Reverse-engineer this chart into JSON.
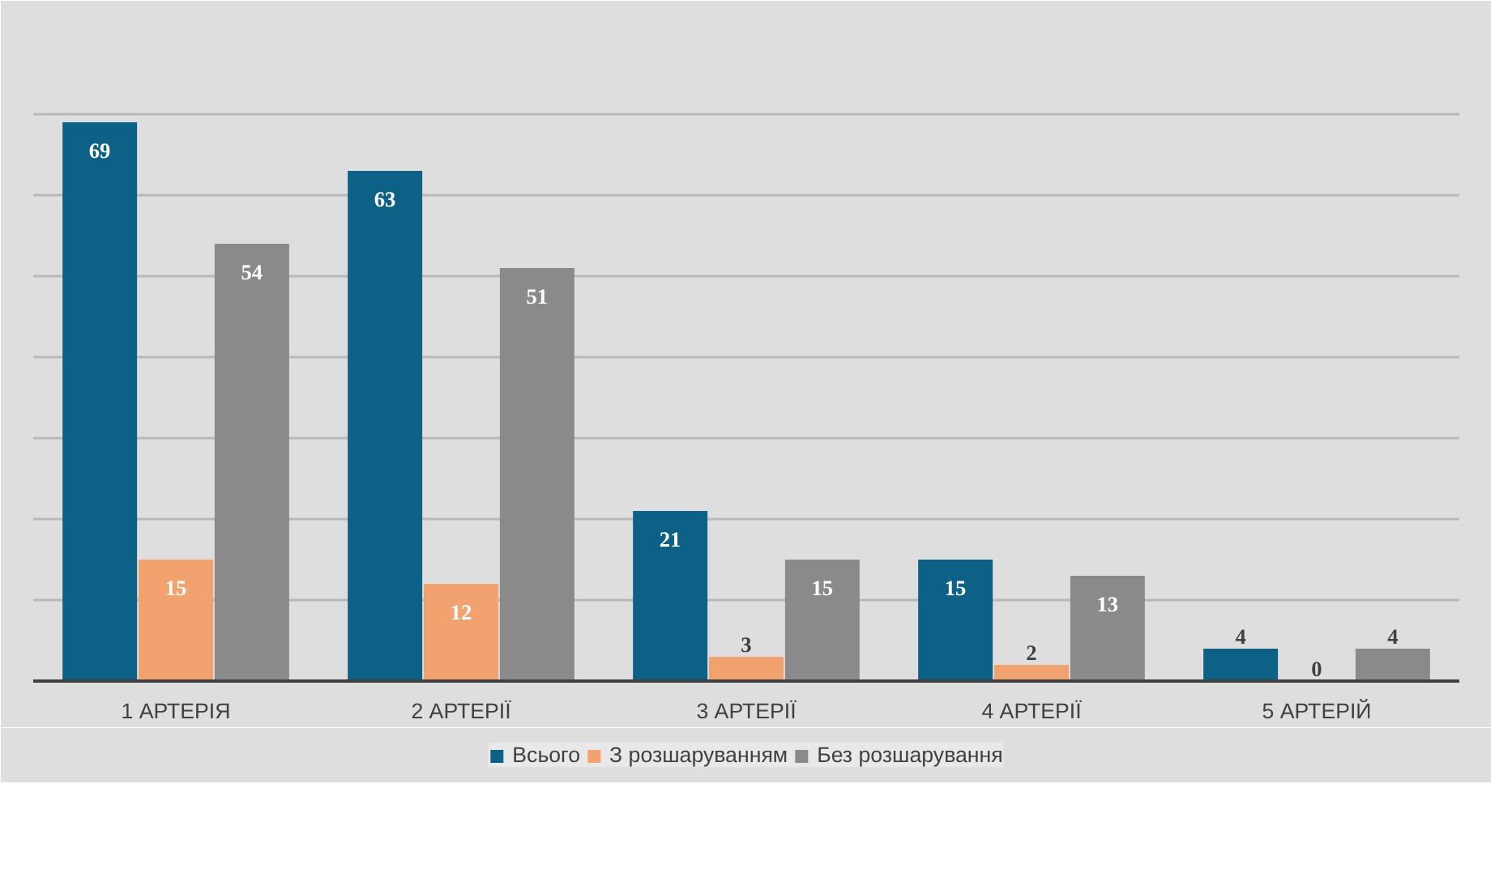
{
  "chart_data": {
    "type": "bar",
    "categories": [
      "1 АРТЕРІЯ",
      "2 АРТЕРІЇ",
      "3 АРТЕРІЇ",
      "4 АРТЕРІЇ",
      "5 АРТЕРІЙ"
    ],
    "series": [
      {
        "name": "Всього",
        "color": "#0e6186",
        "values": [
          69,
          63,
          21,
          15,
          4
        ]
      },
      {
        "name": "З розшаруванням",
        "color": "#f2a26e",
        "values": [
          15,
          12,
          3,
          2,
          0
        ]
      },
      {
        "name": "Без розшарування",
        "color": "#8a8a8a",
        "values": [
          54,
          51,
          15,
          13,
          4
        ]
      }
    ],
    "ylim": [
      0,
      80
    ],
    "yticks": [
      {
        "value": 0,
        "label": null
      },
      {
        "value": 10,
        "label": null
      },
      {
        "value": 20,
        "label": null
      },
      {
        "value": 30,
        "label": null
      },
      {
        "value": 40,
        "label": null
      },
      {
        "value": 50,
        "label": null
      },
      {
        "value": 60,
        "label": null
      },
      {
        "value": 70,
        "label": null
      },
      {
        "value": 80,
        "label": null
      }
    ],
    "tick_labels": "x",
    "grid": "y",
    "data_labels": true,
    "legend": "bottom"
  }
}
